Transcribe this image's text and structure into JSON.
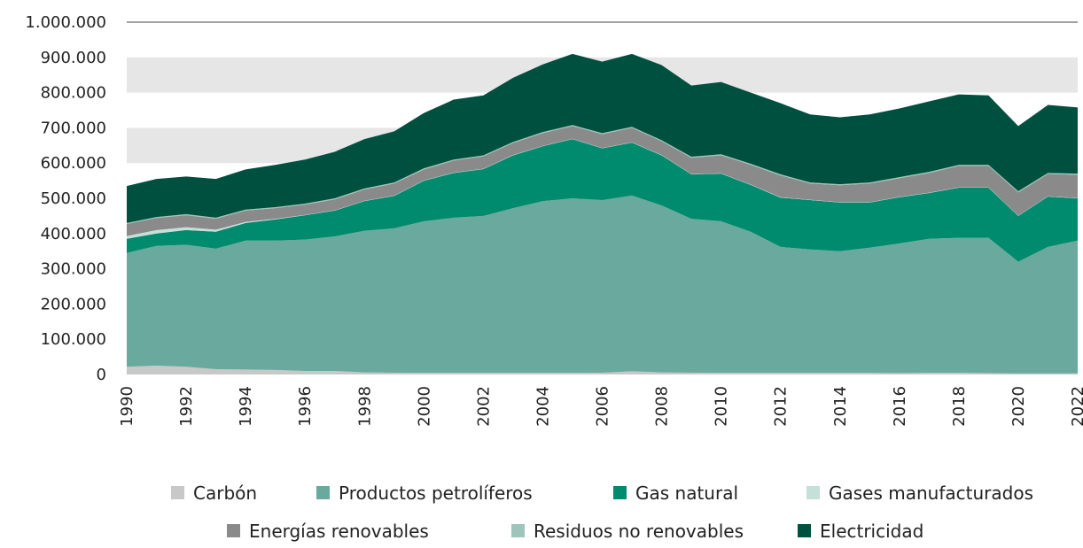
{
  "chart_data": {
    "type": "stacked_area",
    "x": [
      1990,
      1991,
      1992,
      1993,
      1994,
      1995,
      1996,
      1997,
      1998,
      1999,
      2000,
      2001,
      2002,
      2003,
      2004,
      2005,
      2006,
      2007,
      2008,
      2009,
      2010,
      2011,
      2012,
      2013,
      2014,
      2015,
      2016,
      2017,
      2018,
      2019,
      2020,
      2021,
      2022
    ],
    "xlim": [
      1990,
      2022
    ],
    "xticks": [
      1990,
      1992,
      1994,
      1996,
      1998,
      2000,
      2002,
      2004,
      2006,
      2008,
      2010,
      2012,
      2014,
      2016,
      2018,
      2020,
      2022
    ],
    "ylim": [
      0,
      1000000
    ],
    "yticks": [
      0,
      {
        "value": 100000,
        "label": "100.000"
      },
      {
        "value": 200000,
        "label": "200.000"
      },
      {
        "value": 300000,
        "label": "300.000"
      },
      {
        "value": 400000,
        "label": "400.000"
      },
      {
        "value": 500000,
        "label": "500.000"
      },
      {
        "value": 600000,
        "label": "600.000"
      },
      {
        "value": 700000,
        "label": "700.000"
      },
      {
        "value": 800000,
        "label": "800.000"
      },
      {
        "value": 900000,
        "label": "900.000"
      },
      {
        "value": 1000000,
        "label": "1.000.000"
      }
    ],
    "grid": "bands",
    "series": [
      {
        "name": "Carbón",
        "color": "#c8c8c8",
        "values": [
          22000,
          25000,
          22000,
          15000,
          14000,
          13000,
          10000,
          10000,
          6000,
          5000,
          5000,
          5000,
          5000,
          5000,
          5000,
          5000,
          5000,
          9000,
          6000,
          5000,
          5000,
          5000,
          5000,
          5000,
          5000,
          5000,
          4000,
          5000,
          5000,
          4000,
          3000,
          3000,
          3000
        ]
      },
      {
        "name": "Productos petrolíferos",
        "color": "#6aaa9e",
        "values": [
          323000,
          340000,
          346000,
          342000,
          366000,
          367000,
          373000,
          382000,
          402000,
          410000,
          430000,
          440000,
          445000,
          467000,
          487000,
          495000,
          490000,
          499000,
          474000,
          437000,
          430000,
          400000,
          357000,
          350000,
          345000,
          355000,
          368000,
          380000,
          383000,
          384000,
          317000,
          359000,
          377000
        ]
      },
      {
        "name": "Gas natural",
        "color": "#008a6e",
        "values": [
          40000,
          35000,
          42000,
          48000,
          50000,
          60000,
          69000,
          73000,
          84000,
          92000,
          115000,
          127000,
          133000,
          150000,
          156000,
          168000,
          147000,
          150000,
          142000,
          126000,
          135000,
          133000,
          140000,
          140000,
          138000,
          128000,
          131000,
          130000,
          142000,
          142000,
          130000,
          143000,
          120000
        ]
      },
      {
        "name": "Gases manufacturados",
        "color": "#c5e0d8",
        "values": [
          8000,
          10000,
          8000,
          6000,
          3000,
          2000,
          1000,
          1000,
          1000,
          1000,
          1000,
          1000,
          1000,
          1000,
          1000,
          1000,
          1000,
          1000,
          1000,
          1000,
          1000,
          1000,
          1000,
          1000,
          1000,
          1000,
          1000,
          1000,
          1000,
          1000,
          1000,
          1000,
          1000
        ]
      },
      {
        "name": "Energías renovables",
        "color": "#8a8a8a",
        "values": [
          34000,
          34000,
          34000,
          31000,
          32000,
          30000,
          29000,
          31000,
          32000,
          34000,
          31000,
          34000,
          35000,
          34000,
          36000,
          36000,
          39000,
          41000,
          39000,
          46000,
          51000,
          56000,
          62000,
          46000,
          48000,
          53000,
          53000,
          56000,
          61000,
          61000,
          66000,
          63000,
          66000
        ]
      },
      {
        "name": "Residuos no renovables",
        "color": "#9ec5bb",
        "values": [
          3000,
          3000,
          3000,
          3000,
          3000,
          3000,
          3000,
          3000,
          3000,
          3000,
          3000,
          3000,
          3000,
          3000,
          3000,
          3000,
          3000,
          3000,
          3000,
          3000,
          3000,
          3000,
          3000,
          3000,
          3000,
          3000,
          3000,
          3000,
          3000,
          3000,
          3000,
          3000,
          3000
        ]
      },
      {
        "name": "Electricidad",
        "color": "#005040",
        "values": [
          105000,
          108000,
          107000,
          110000,
          114000,
          120000,
          125000,
          132000,
          140000,
          145000,
          157000,
          170000,
          170000,
          182000,
          192000,
          202000,
          203000,
          207000,
          213000,
          202000,
          205000,
          202000,
          202000,
          193000,
          190000,
          193000,
          195000,
          200000,
          200000,
          197000,
          185000,
          193000,
          188000
        ]
      }
    ]
  }
}
